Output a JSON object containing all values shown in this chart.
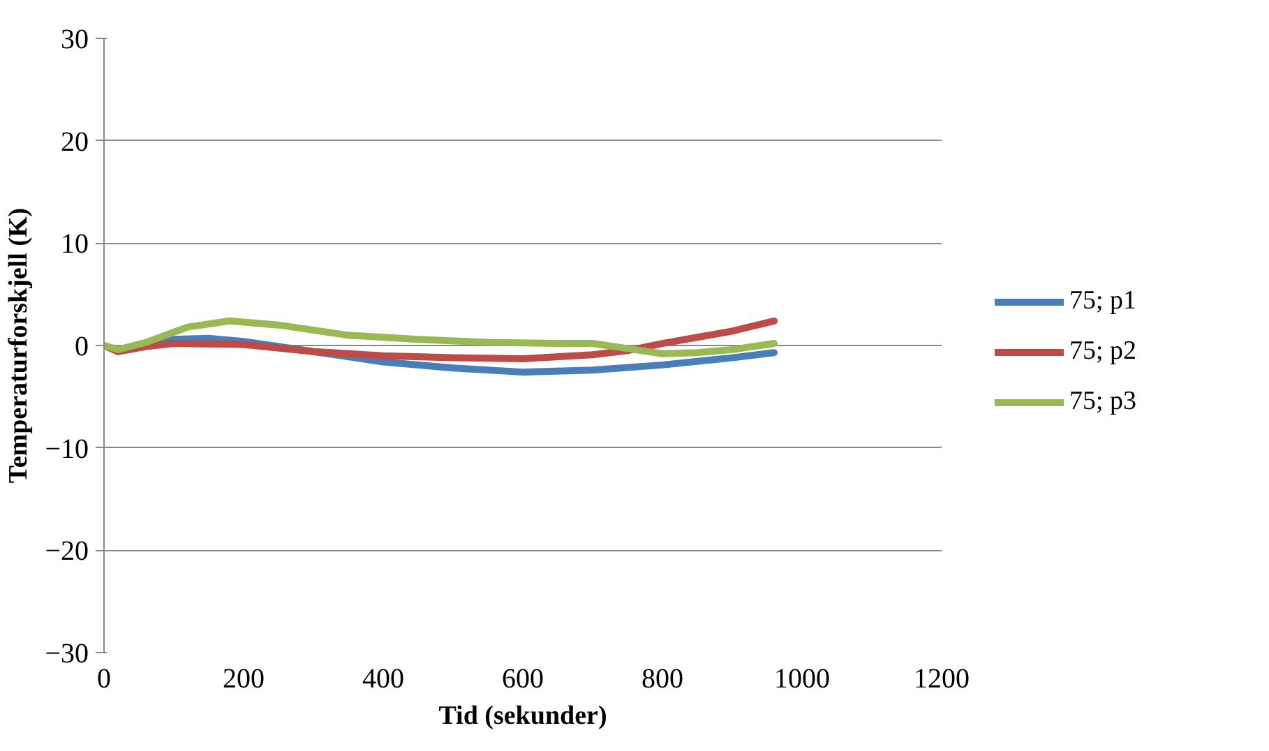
{
  "chart_data": {
    "type": "line",
    "xlabel": "Tid (sekunder)",
    "ylabel": "Temperaturforskjell (K)",
    "xlim": [
      0,
      1200
    ],
    "xticks": [
      0,
      200,
      400,
      600,
      800,
      1000,
      1200
    ],
    "ylim": [
      -30,
      30
    ],
    "yticks": [
      -30,
      -20,
      -10,
      0,
      10,
      20,
      30
    ],
    "grid": "y",
    "legend": "right",
    "marker": "none",
    "series": [
      {
        "name": "75; p1",
        "color": "#4a7ebb",
        "x": [
          0,
          20,
          60,
          100,
          150,
          200,
          300,
          400,
          500,
          600,
          700,
          800,
          900,
          960
        ],
        "values": [
          0,
          -0.5,
          0,
          0.6,
          0.7,
          0.4,
          -0.6,
          -1.6,
          -2.2,
          -2.6,
          -2.4,
          -1.9,
          -1.2,
          -0.7
        ]
      },
      {
        "name": "75; p2",
        "color": "#be4b48",
        "x": [
          0,
          20,
          60,
          100,
          200,
          300,
          400,
          500,
          600,
          700,
          750,
          800,
          900,
          960
        ],
        "values": [
          0,
          -0.6,
          -0.1,
          0.2,
          0.1,
          -0.6,
          -1.0,
          -1.2,
          -1.3,
          -0.9,
          -0.5,
          0.2,
          1.4,
          2.4
        ]
      },
      {
        "name": "75; p3",
        "color": "#98b954",
        "x": [
          0,
          20,
          60,
          120,
          180,
          250,
          350,
          450,
          550,
          650,
          700,
          750,
          800,
          850,
          900,
          960
        ],
        "values": [
          0,
          -0.4,
          0.3,
          1.8,
          2.4,
          2.0,
          1.0,
          0.6,
          0.3,
          0.2,
          0.2,
          -0.3,
          -0.8,
          -0.7,
          -0.4,
          0.2
        ]
      }
    ]
  }
}
